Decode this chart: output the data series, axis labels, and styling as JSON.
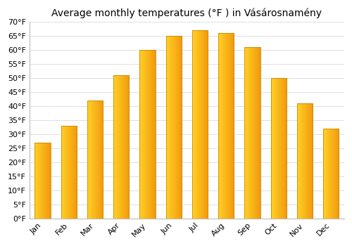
{
  "title": "Average monthly temperatures (°F ) in Vásárosnamény",
  "months": [
    "Jan",
    "Feb",
    "Mar",
    "Apr",
    "May",
    "Jun",
    "Jul",
    "Aug",
    "Sep",
    "Oct",
    "Nov",
    "Dec"
  ],
  "values": [
    27,
    33,
    42,
    51,
    60,
    65,
    67,
    66,
    61,
    50,
    41,
    32
  ],
  "bar_color": "#FFA500",
  "bar_edge_color": "#CC8800",
  "ylim": [
    0,
    70
  ],
  "yticks": [
    0,
    5,
    10,
    15,
    20,
    25,
    30,
    35,
    40,
    45,
    50,
    55,
    60,
    65,
    70
  ],
  "ytick_labels": [
    "0°F",
    "5°F",
    "10°F",
    "15°F",
    "20°F",
    "25°F",
    "30°F",
    "35°F",
    "40°F",
    "45°F",
    "50°F",
    "55°F",
    "60°F",
    "65°F",
    "70°F"
  ],
  "background_color": "#ffffff",
  "grid_color": "#e0e0e0",
  "title_fontsize": 10,
  "tick_fontsize": 8,
  "bar_width": 0.6,
  "figsize": [
    5.0,
    3.5
  ],
  "dpi": 100
}
